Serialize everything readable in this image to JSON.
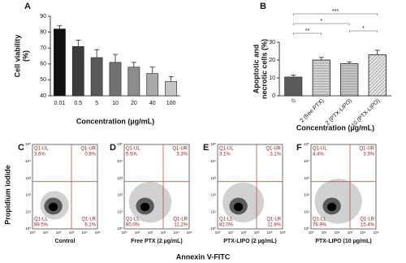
{
  "chart_data": [
    {
      "type": "bar",
      "panel": "A",
      "ylabel": [
        "Cell viability",
        "(%)"
      ],
      "xlabel": "Concentration (µg/mL)",
      "categories": [
        "0.01",
        "0.5",
        "5",
        "10",
        "20",
        "40",
        "100"
      ],
      "values": [
        82,
        71,
        64,
        61,
        58,
        54,
        49
      ],
      "errors": [
        2,
        4,
        5,
        5,
        3,
        4,
        3
      ],
      "colors": [
        "#111111",
        "#3c3c3c",
        "#595959",
        "#727272",
        "#8c8c8c",
        "#a9a9a9",
        "#c4c4c4"
      ],
      "hatch": [
        "none",
        "none",
        "none",
        "none",
        "none",
        "none",
        "none"
      ],
      "ylim": [
        40,
        90
      ],
      "yticks": [
        40,
        50,
        60,
        70,
        80,
        90
      ],
      "significance": []
    },
    {
      "type": "bar",
      "panel": "B",
      "ylabel": [
        "Apoptotic and",
        "necrotic cells (%)"
      ],
      "xlabel": "Concentration (µg/mL)",
      "categories": [
        "0",
        "2 (free PTX)",
        "2 (PTX-LIPO)",
        "10 (PTX-LIPO)"
      ],
      "values": [
        10.5,
        20,
        18,
        23
      ],
      "errors": [
        1,
        1.5,
        1,
        2.5
      ],
      "colors": [
        "#5a5a5a",
        "#e6e6e6",
        "#d6d6d6",
        "#e6e6e6"
      ],
      "hatch": [
        "none",
        "horizontal",
        "horizontal",
        "diagonal"
      ],
      "ylim": [
        0,
        30
      ],
      "yticks": [
        0,
        10,
        20,
        30
      ],
      "significance": [
        {
          "pair": [
            "0",
            "2 (free PTX)"
          ],
          "label": "**"
        },
        {
          "pair": [
            "0",
            "2 (PTX-LIPO)"
          ],
          "label": "*"
        },
        {
          "pair": [
            "0",
            "10 (PTX-LIPO)"
          ],
          "label": "***"
        },
        {
          "pair": [
            "2 (PTX-LIPO)",
            "10 (PTX-LIPO)"
          ],
          "label": "*"
        }
      ]
    },
    {
      "type": "flow",
      "panel": "C",
      "caption": "Control",
      "quadrants": [
        "Q1-UL",
        "Q1-UR",
        "Q1-LL",
        "Q1-LR"
      ],
      "values": [
        3.6,
        0.8,
        89.5,
        6.1
      ],
      "value_labels": [
        "3.6%",
        "0.8%",
        "89.5%",
        "6.1%"
      ]
    },
    {
      "type": "flow",
      "panel": "D",
      "caption": "Free PTX (2 µg/mL)",
      "quadrants": [
        "Q1-UL",
        "Q1-UR",
        "Q1-LL",
        "Q1-LR"
      ],
      "values": [
        5.5,
        3.3,
        80.0,
        11.2
      ],
      "value_labels": [
        "5.5%",
        "3.3%",
        "80.0%",
        "11.2%"
      ]
    },
    {
      "type": "flow",
      "panel": "E",
      "caption": "PTX-LIPO (2 µg/mL)",
      "quadrants": [
        "Q1-UL",
        "Q1-UR",
        "Q1-LL",
        "Q1-LR"
      ],
      "values": [
        3.1,
        3.1,
        82.0,
        11.8
      ],
      "value_labels": [
        "3.1%",
        "3.1%",
        "82.0%",
        "11.8%"
      ]
    },
    {
      "type": "flow",
      "panel": "F",
      "caption": "PTX-LIPO (10 µg/mL)",
      "quadrants": [
        "Q1-UL",
        "Q1-UR",
        "Q1-LL",
        "Q1-LR"
      ],
      "values": [
        4.4,
        3.3,
        76.9,
        15.4
      ],
      "value_labels": [
        "4.4%",
        "3.3%",
        "76.9%",
        "15.4%"
      ]
    }
  ],
  "flow_axes": {
    "ylabel": "Propidium iodide",
    "xlabel": "Annexin V-FITC",
    "tick_labels": [
      "10⁰",
      "10¹",
      "10²",
      "10³",
      "10⁴",
      "10⁵"
    ]
  }
}
